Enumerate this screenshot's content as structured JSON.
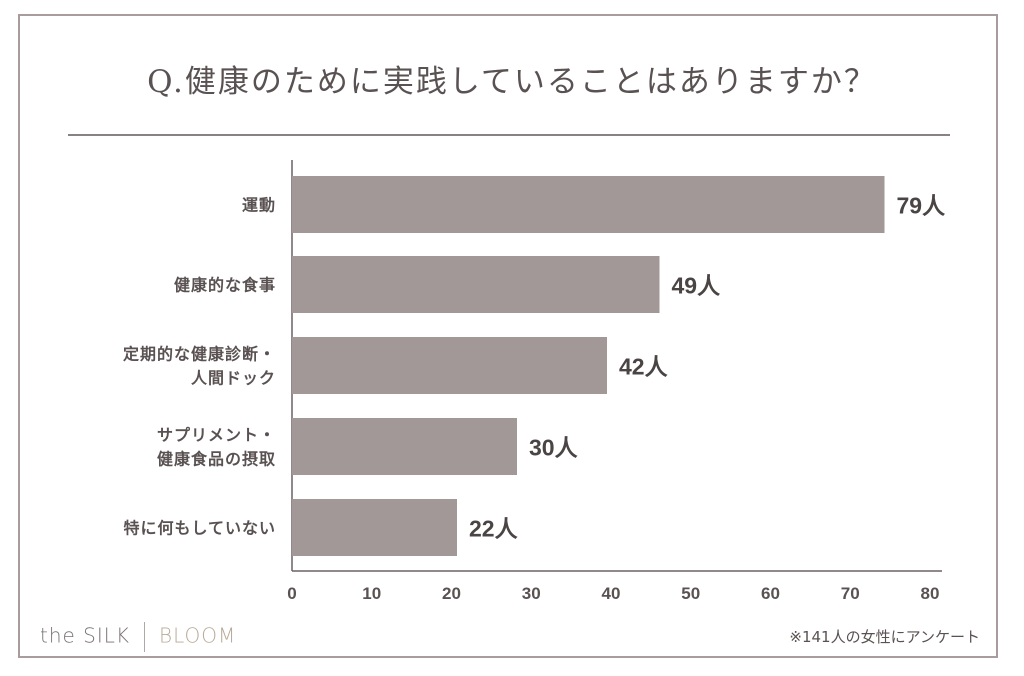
{
  "title": "Q.健康のために実践していることはありますか？",
  "logo": {
    "left": "the SILK",
    "right": "BLOOM"
  },
  "note": "※141人の女性にアンケート",
  "colors": {
    "bar": "#a39898",
    "text": "#5a5252",
    "frame": "#a89c9c"
  },
  "chart_data": {
    "type": "bar",
    "orientation": "horizontal",
    "categories": [
      [
        "運動"
      ],
      [
        "健康的な食事"
      ],
      [
        "定期的な健康診断・",
        "人間ドック"
      ],
      [
        "サプリメント・",
        "健康食品の摂取"
      ],
      [
        "特に何もしていない"
      ]
    ],
    "values": [
      79,
      49,
      42,
      30,
      22
    ],
    "data_labels": [
      "79人",
      "49人",
      "42人",
      "30人",
      "22人"
    ],
    "unit": "人",
    "xlim": [
      0,
      80
    ],
    "xticks": [
      0,
      10,
      20,
      30,
      40,
      50,
      60,
      70,
      80
    ],
    "grid": false
  }
}
